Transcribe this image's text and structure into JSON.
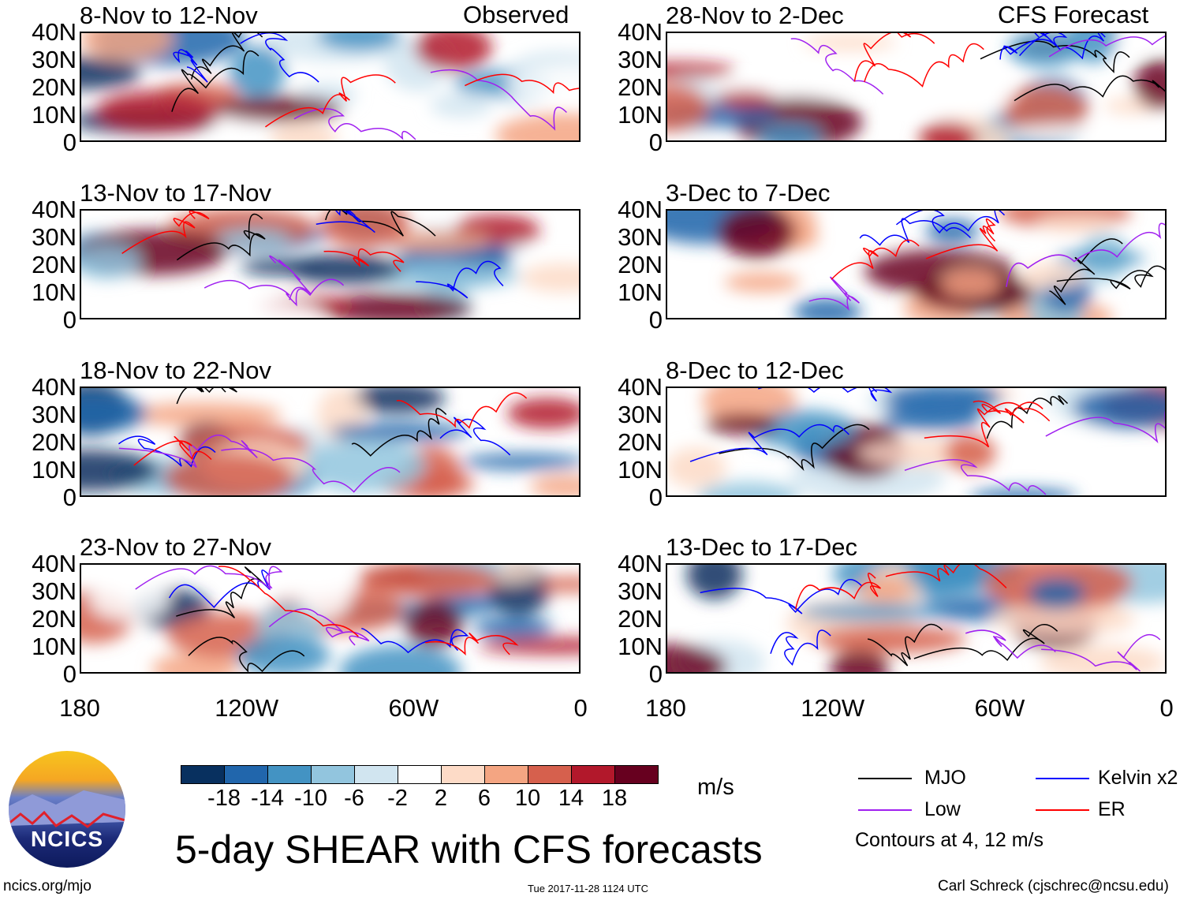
{
  "chart_data": {
    "type": "heatmap",
    "title": "5-day SHEAR with CFS forecasts",
    "units": "m/s",
    "column_headers": [
      "Observed",
      "CFS Forecast"
    ],
    "y_ticks": [
      "40N",
      "30N",
      "20N",
      "10N",
      "0"
    ],
    "x_ticks": [
      "180",
      "120W",
      "60W",
      "0"
    ],
    "lat_range": [
      0,
      40
    ],
    "lon_range": [
      -180,
      0
    ],
    "panels": [
      {
        "title": "8-Nov to 12-Nov",
        "column": "Observed"
      },
      {
        "title": "13-Nov to 17-Nov",
        "column": "Observed"
      },
      {
        "title": "18-Nov to 22-Nov",
        "column": "Observed"
      },
      {
        "title": "23-Nov to 27-Nov",
        "column": "Observed"
      },
      {
        "title": "28-Nov to 2-Dec",
        "column": "CFS Forecast"
      },
      {
        "title": "3-Dec to 7-Dec",
        "column": "CFS Forecast"
      },
      {
        "title": "8-Dec to 12-Dec",
        "column": "CFS Forecast"
      },
      {
        "title": "13-Dec to 17-Dec",
        "column": "CFS Forecast"
      }
    ],
    "colorbar": {
      "levels": [
        "-18",
        "-14",
        "-10",
        "-6",
        "-2",
        "2",
        "6",
        "10",
        "14",
        "18"
      ],
      "colors": [
        "#08305f",
        "#2166ac",
        "#4393c3",
        "#92c5de",
        "#d1e5f0",
        "#ffffff",
        "#fddbc7",
        "#f4a582",
        "#d6604d",
        "#b2182b",
        "#67001f"
      ]
    },
    "legend": [
      {
        "label": "MJO",
        "color": "#000000"
      },
      {
        "label": "Kelvin x2",
        "color": "#0000ff"
      },
      {
        "label": "Low",
        "color": "#a020f0"
      },
      {
        "label": "ER",
        "color": "#ff0000"
      }
    ],
    "contour_note": "Contours at 4, 12 m/s"
  },
  "footer": {
    "logo_text": "NCICS",
    "url": "ncics.org/mjo",
    "timestamp": "Tue 2017-11-28 1124 UTC",
    "author": "Carl Schreck (cjschrec@ncsu.edu)"
  }
}
